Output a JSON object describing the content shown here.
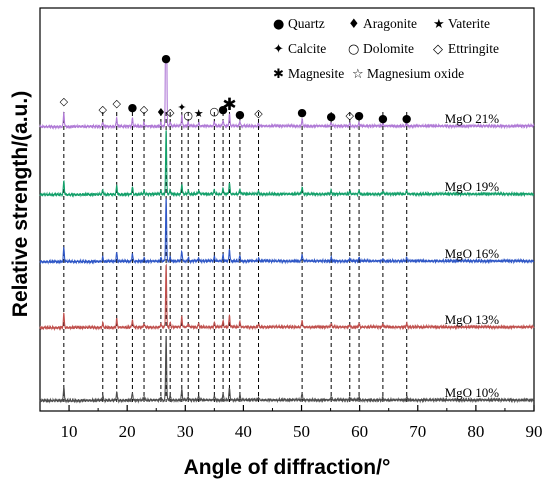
{
  "chart_data": {
    "type": "line",
    "xlabel": "Angle of diffraction/°",
    "ylabel": "Relative strength/(a.u.)",
    "xlim": [
      5,
      90
    ],
    "xticks": [
      10,
      20,
      30,
      40,
      50,
      60,
      70,
      80,
      90
    ],
    "series": [
      {
        "name": "MgO 10%",
        "color": "#4d4d4d",
        "offset": 0
      },
      {
        "name": "MgO 13%",
        "color": "#c0504d",
        "offset": 1
      },
      {
        "name": "MgO 16%",
        "color": "#2f57c6",
        "offset": 2
      },
      {
        "name": "MgO 19%",
        "color": "#13a06a",
        "offset": 3
      },
      {
        "name": "MgO 21%",
        "color": "#b07ad6",
        "offset": 4
      }
    ],
    "peaks": [
      {
        "x": 9.1,
        "h": 0.16
      },
      {
        "x": 15.8,
        "h": 0.05
      },
      {
        "x": 18.2,
        "h": 0.1
      },
      {
        "x": 20.9,
        "h": 0.09
      },
      {
        "x": 22.9,
        "h": 0.04
      },
      {
        "x": 25.8,
        "h": 0.04
      },
      {
        "x": 26.7,
        "h": 1.0
      },
      {
        "x": 27.4,
        "h": 0.05
      },
      {
        "x": 29.4,
        "h": 0.12
      },
      {
        "x": 30.5,
        "h": 0.04
      },
      {
        "x": 32.3,
        "h": 0.04
      },
      {
        "x": 35.0,
        "h": 0.05
      },
      {
        "x": 36.5,
        "h": 0.07
      },
      {
        "x": 37.6,
        "h": 0.14
      },
      {
        "x": 39.4,
        "h": 0.06
      },
      {
        "x": 42.6,
        "h": 0.03
      },
      {
        "x": 50.1,
        "h": 0.08
      },
      {
        "x": 55.1,
        "h": 0.04
      },
      {
        "x": 58.3,
        "h": 0.03
      },
      {
        "x": 59.9,
        "h": 0.04
      },
      {
        "x": 64.0,
        "h": 0.03
      },
      {
        "x": 68.1,
        "h": 0.04
      }
    ],
    "markers": [
      {
        "x": 9.1,
        "symbol": "◇",
        "phase": "Ettringite"
      },
      {
        "x": 15.8,
        "symbol": "◇",
        "phase": "Ettringite"
      },
      {
        "x": 18.2,
        "symbol": "◇",
        "phase": "Ettringite"
      },
      {
        "x": 20.9,
        "symbol": "●",
        "phase": "Quartz"
      },
      {
        "x": 22.9,
        "symbol": "◇",
        "phase": "Ettringite"
      },
      {
        "x": 25.8,
        "symbol": "♦",
        "phase": "Aragonite"
      },
      {
        "x": 26.7,
        "symbol": "●",
        "phase": "Quartz"
      },
      {
        "x": 27.4,
        "symbol": "◇",
        "phase": "Ettringite"
      },
      {
        "x": 29.4,
        "symbol": "✦",
        "phase": "Calcite"
      },
      {
        "x": 30.5,
        "symbol": "○",
        "phase": "Dolomite"
      },
      {
        "x": 32.3,
        "symbol": "★",
        "phase": "Vaterite"
      },
      {
        "x": 35.0,
        "symbol": "○",
        "phase": "Dolomite"
      },
      {
        "x": 36.5,
        "symbol": "●",
        "phase": "Quartz"
      },
      {
        "x": 37.6,
        "symbol": "✱",
        "phase": "Magnesite"
      },
      {
        "x": 39.4,
        "symbol": "●",
        "phase": "Quartz"
      },
      {
        "x": 42.6,
        "symbol": "◇",
        "phase": "Ettringite"
      },
      {
        "x": 50.1,
        "symbol": "●",
        "phase": "Quartz"
      },
      {
        "x": 55.1,
        "symbol": "●",
        "phase": "Quartz"
      },
      {
        "x": 58.3,
        "symbol": "◇",
        "phase": "Ettringite"
      },
      {
        "x": 59.9,
        "symbol": "●",
        "phase": "Quartz"
      },
      {
        "x": 64.0,
        "symbol": "●",
        "phase": "Quartz"
      },
      {
        "x": 68.1,
        "symbol": "●",
        "phase": "Quartz"
      }
    ],
    "legend": [
      [
        {
          "symbol": "●",
          "label": "Quartz"
        },
        {
          "symbol": "♦",
          "label": "Aragonite"
        },
        {
          "symbol": "★",
          "label": "Vaterite"
        }
      ],
      [
        {
          "symbol": "✦",
          "label": "Calcite"
        },
        {
          "symbol": "○",
          "label": "Dolomite"
        },
        {
          "symbol": "◇",
          "label": "Ettringite"
        }
      ],
      [
        {
          "symbol": "✱",
          "label": "Magnesite"
        },
        {
          "symbol": "☆",
          "label": "Magnesium oxide"
        }
      ]
    ]
  }
}
